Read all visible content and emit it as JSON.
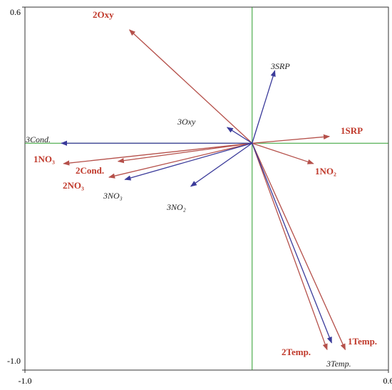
{
  "chart_data": {
    "type": "biplot",
    "xlim": [
      -1,
      0.6
    ],
    "ylim": [
      -1,
      0.6
    ],
    "xticks": [
      {
        "value": -1,
        "label": "-1.0"
      },
      0.6
    ],
    "yticks": [
      {
        "value": -1,
        "label": "-1.0"
      },
      0.6
    ],
    "axis_line_color": "#2e9e2e",
    "series": [
      {
        "color": "#b5504a",
        "label_style": "red",
        "vectors": [
          {
            "label": "2Oxy",
            "x": -0.54,
            "y": 0.5
          },
          {
            "label": "1SRP",
            "x": 0.34,
            "y": 0.03
          },
          {
            "label": "1NO₂",
            "x": 0.27,
            "y": -0.09
          },
          {
            "label": "1NO₃",
            "x": -0.83,
            "y": -0.09
          },
          {
            "label": "2Cond.",
            "x": -0.59,
            "y": -0.08
          },
          {
            "label": "2NO₃",
            "x": -0.63,
            "y": -0.15
          },
          {
            "label": "2Temp.",
            "x": 0.33,
            "y": -0.91
          },
          {
            "label": "1Temp.",
            "x": 0.41,
            "y": -0.91
          }
        ]
      },
      {
        "color": "#3a3a9a",
        "label_style": "blue",
        "vectors": [
          {
            "label": "3SRP",
            "x": 0.1,
            "y": 0.32
          },
          {
            "label": "3Oxy",
            "x": -0.11,
            "y": 0.07
          },
          {
            "label": "3Cond.",
            "x": -0.84,
            "y": 0.0
          },
          {
            "label": "3NO₃",
            "x": -0.56,
            "y": -0.16
          },
          {
            "label": "3NO₂",
            "x": -0.27,
            "y": -0.19
          },
          {
            "label": "3Temp.",
            "x": 0.35,
            "y": -0.88
          }
        ]
      }
    ]
  }
}
